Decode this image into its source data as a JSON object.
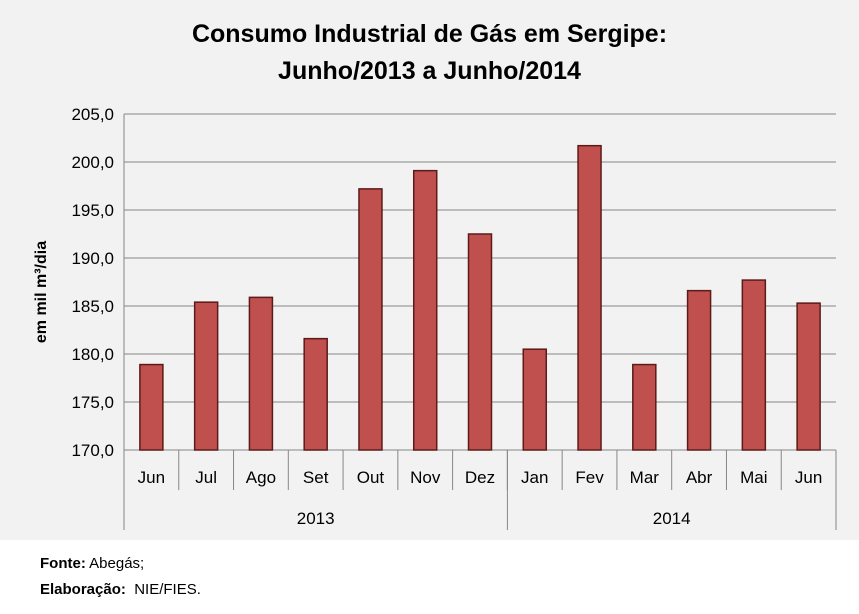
{
  "chart_data": {
    "type": "bar",
    "title": [
      "Consumo Industrial de Gás em Sergipe:",
      "Junho/2013 a Junho/2014"
    ],
    "ylabel": "em mil m³/dia",
    "xlabel": "",
    "ylim": [
      170,
      205
    ],
    "yticks": [
      "170,0",
      "175,0",
      "180,0",
      "185,0",
      "190,0",
      "195,0",
      "200,0",
      "205,0"
    ],
    "ytick_values": [
      170,
      175,
      180,
      185,
      190,
      195,
      200,
      205
    ],
    "grid": true,
    "categories": [
      "Jun",
      "Jul",
      "Ago",
      "Set",
      "Out",
      "Nov",
      "Dez",
      "Jan",
      "Fev",
      "Mar",
      "Abr",
      "Mai",
      "Jun"
    ],
    "groups": [
      {
        "label": "2013",
        "count": 7
      },
      {
        "label": "2014",
        "count": 6
      }
    ],
    "values": [
      178.9,
      185.4,
      185.9,
      181.6,
      197.2,
      199.1,
      192.5,
      180.5,
      201.7,
      178.9,
      186.6,
      187.7,
      185.3
    ],
    "bar_color": "#c0504d",
    "bar_border": "#5c1a19"
  },
  "footer": {
    "source_label": "Fonte:",
    "source_value": "Abegás;",
    "elab_label": "Elaboração:",
    "elab_value": "NIE/FIES."
  }
}
